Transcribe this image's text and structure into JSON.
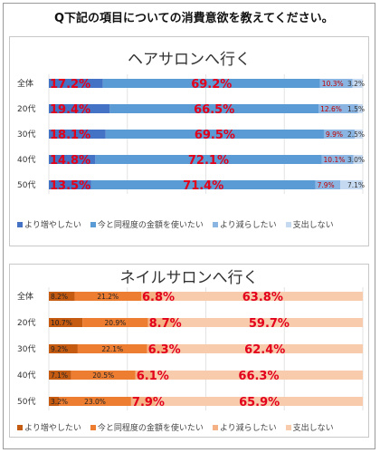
{
  "question": "Q下記の項目についての消費意欲を教えてください。",
  "chart_data": [
    {
      "type": "bar",
      "stacked": true,
      "orientation": "horizontal",
      "percent": true,
      "title": "ヘアサロンへ行く",
      "categories": [
        "全体",
        "20代",
        "30代",
        "40代",
        "50代"
      ],
      "series": [
        {
          "name": "より増やしたい",
          "values": [
            17.2,
            19.4,
            18.1,
            14.8,
            13.5
          ],
          "color": "#4472c4",
          "labels": [
            "17.2%",
            "19.4%",
            "18.1%",
            "14.8%",
            "13.5%"
          ]
        },
        {
          "name": "今と同程度の金額を使いたい",
          "values": [
            69.2,
            66.5,
            69.5,
            72.1,
            71.4
          ],
          "color": "#5b9bd5",
          "labels": [
            "69.2%",
            "66.5%",
            "69.5%",
            "72.1%",
            "71.4%"
          ]
        },
        {
          "name": "より減らしたい",
          "values": [
            10.3,
            12.6,
            9.9,
            10.1,
            7.9
          ],
          "color": "#8ab4e2",
          "labels": [
            "10.3%",
            "12.6%",
            "9.9%",
            "10.1%",
            "7.9%"
          ]
        },
        {
          "name": "支出しない",
          "values": [
            3.2,
            1.5,
            2.5,
            3.0,
            7.1
          ],
          "color": "#c5d9f1",
          "labels": [
            "3.2%",
            "1.5%",
            "2.5%",
            "3.0%",
            "7.1%"
          ]
        }
      ],
      "big_label_color": "#e3001b",
      "legend": "bottom"
    },
    {
      "type": "bar",
      "stacked": true,
      "orientation": "horizontal",
      "percent": true,
      "title": "ネイルサロンへ行く",
      "categories": [
        "全体",
        "20代",
        "30代",
        "40代",
        "50代"
      ],
      "series": [
        {
          "name": "より増やしたい",
          "values": [
            8.2,
            10.7,
            9.2,
            7.1,
            3.2
          ],
          "color": "#c55a11",
          "labels": [
            "8.2%",
            "10.7%",
            "9.2%",
            "7.1%",
            "3.2%"
          ]
        },
        {
          "name": "今と同程度の金額を使いたい",
          "values": [
            21.2,
            20.9,
            22.1,
            20.5,
            23.0
          ],
          "color": "#ed7d31",
          "labels": [
            "21.2%",
            "20.9%",
            "22.1%",
            "20.5%",
            "23.0%"
          ]
        },
        {
          "name": "より減らしたい",
          "values": [
            6.8,
            8.7,
            6.3,
            6.1,
            7.9
          ],
          "color": "#f4b183",
          "labels": [
            "6.8%",
            "8.7%",
            "6.3%",
            "6.1%",
            "7.9%"
          ]
        },
        {
          "name": "支出しない",
          "values": [
            63.8,
            59.7,
            62.4,
            66.3,
            65.9
          ],
          "color": "#f8cbad",
          "labels": [
            "63.8%",
            "59.7%",
            "62.4%",
            "66.3%",
            "65.9%"
          ]
        }
      ],
      "big_label_color": "#e3001b",
      "legend": "bottom"
    }
  ]
}
